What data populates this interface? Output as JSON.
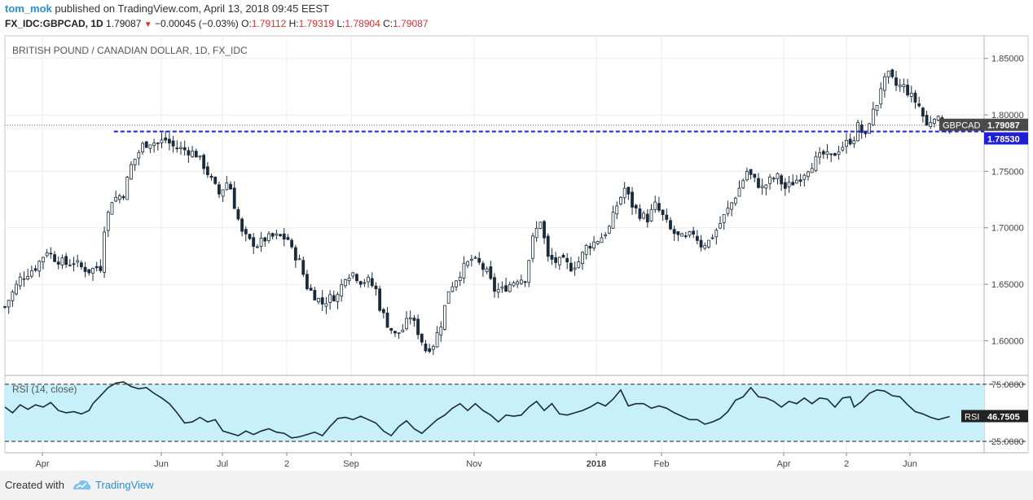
{
  "header": {
    "user": "tom_mok",
    "published": "published on TradingView.com, April 13, 2018 09:45 EEST"
  },
  "quote": {
    "symbol": "FX_IDC:GBPCAD, 1D",
    "last": "1.79087",
    "change": "−0.00045 (−0.03%)",
    "o_label": "O:",
    "o": "1.79112",
    "h_label": "H:",
    "h": "1.79319",
    "l_label": "L:",
    "l": "1.78904",
    "c_label": "C:",
    "c": "1.79087"
  },
  "footer": {
    "created": "Created with",
    "brand": "TradingView"
  },
  "colors": {
    "candle": "#1a2b3c",
    "support": "#1f1fd6",
    "rsi_fill": "#c8f0fa",
    "rsi_line": "#1a2b3c",
    "tag_dark": "#4a4a4a",
    "accent": "#2a8fd6"
  },
  "chart_data": [
    {
      "type": "candlestick",
      "title": "BRITISH POUND / CANADIAN DOLLAR, 1D, FX_IDC",
      "ylim": [
        1.57,
        1.87
      ],
      "yticks": [
        1.6,
        1.65,
        1.7,
        1.75,
        1.8,
        1.85
      ],
      "ytick_labels": [
        "1.60000",
        "1.65000",
        "1.70000",
        "1.75000",
        "1.80000",
        "1.85000"
      ],
      "x_labels": [
        "Apr",
        "Jun",
        "Jul",
        "2",
        "Sep",
        "Nov",
        "2018",
        "Feb",
        "Apr",
        "2",
        "Jun"
      ],
      "close_path": [
        [
          0,
          1.63
        ],
        [
          8,
          1.655
        ],
        [
          16,
          1.665
        ],
        [
          22,
          1.68
        ],
        [
          26,
          1.673
        ],
        [
          32,
          1.668
        ],
        [
          36,
          1.67
        ],
        [
          40,
          1.665
        ],
        [
          44,
          1.662
        ],
        [
          48,
          1.665
        ],
        [
          50,
          1.665
        ],
        [
          52,
          1.7
        ],
        [
          56,
          1.725
        ],
        [
          62,
          1.73
        ],
        [
          66,
          1.755
        ],
        [
          72,
          1.773
        ],
        [
          76,
          1.776
        ],
        [
          80,
          1.775
        ],
        [
          84,
          1.778
        ],
        [
          88,
          1.772
        ],
        [
          92,
          1.77
        ],
        [
          96,
          1.768
        ],
        [
          100,
          1.765
        ],
        [
          104,
          1.755
        ],
        [
          108,
          1.742
        ],
        [
          112,
          1.73
        ],
        [
          116,
          1.74
        ],
        [
          118,
          1.735
        ],
        [
          120,
          1.72
        ],
        [
          124,
          1.695
        ],
        [
          128,
          1.688
        ],
        [
          132,
          1.685
        ],
        [
          136,
          1.69
        ],
        [
          140,
          1.692
        ],
        [
          144,
          1.692
        ],
        [
          148,
          1.69
        ],
        [
          150,
          1.68
        ],
        [
          154,
          1.67
        ],
        [
          158,
          1.648
        ],
        [
          162,
          1.64
        ],
        [
          166,
          1.633
        ],
        [
          170,
          1.638
        ],
        [
          174,
          1.64
        ],
        [
          178,
          1.658
        ],
        [
          182,
          1.66
        ],
        [
          186,
          1.653
        ],
        [
          190,
          1.653
        ],
        [
          194,
          1.645
        ],
        [
          196,
          1.63
        ],
        [
          200,
          1.615
        ],
        [
          204,
          1.605
        ],
        [
          208,
          1.61
        ],
        [
          212,
          1.622
        ],
        [
          214,
          1.615
        ],
        [
          216,
          1.608
        ],
        [
          220,
          1.592
        ],
        [
          224,
          1.597
        ],
        [
          228,
          1.615
        ],
        [
          232,
          1.645
        ],
        [
          236,
          1.655
        ],
        [
          240,
          1.665
        ],
        [
          244,
          1.672
        ],
        [
          248,
          1.668
        ],
        [
          252,
          1.66
        ],
        [
          256,
          1.645
        ],
        [
          260,
          1.645
        ],
        [
          264,
          1.65
        ],
        [
          268,
          1.655
        ],
        [
          272,
          1.655
        ],
        [
          276,
          1.69
        ],
        [
          280,
          1.707
        ],
        [
          284,
          1.673
        ],
        [
          288,
          1.67
        ],
        [
          292,
          1.67
        ],
        [
          296,
          1.665
        ],
        [
          300,
          1.67
        ],
        [
          304,
          1.683
        ],
        [
          308,
          1.687
        ],
        [
          312,
          1.692
        ],
        [
          316,
          1.7
        ],
        [
          320,
          1.72
        ],
        [
          324,
          1.735
        ],
        [
          328,
          1.72
        ],
        [
          332,
          1.712
        ],
        [
          336,
          1.708
        ],
        [
          340,
          1.72
        ],
        [
          344,
          1.71
        ],
        [
          348,
          1.698
        ],
        [
          352,
          1.692
        ],
        [
          356,
          1.69
        ],
        [
          360,
          1.696
        ],
        [
          364,
          1.685
        ],
        [
          368,
          1.688
        ],
        [
          372,
          1.698
        ],
        [
          376,
          1.71
        ],
        [
          380,
          1.722
        ],
        [
          384,
          1.735
        ],
        [
          388,
          1.75
        ],
        [
          392,
          1.742
        ],
        [
          396,
          1.735
        ],
        [
          400,
          1.742
        ],
        [
          404,
          1.745
        ],
        [
          408,
          1.735
        ],
        [
          412,
          1.74
        ],
        [
          416,
          1.745
        ],
        [
          420,
          1.753
        ],
        [
          424,
          1.76
        ],
        [
          428,
          1.765
        ],
        [
          432,
          1.762
        ],
        [
          436,
          1.77
        ],
        [
          440,
          1.775
        ],
        [
          444,
          1.78
        ],
        [
          446,
          1.79
        ],
        [
          450,
          1.78
        ],
        [
          452,
          1.795
        ],
        [
          456,
          1.81
        ],
        [
          458,
          1.825
        ],
        [
          462,
          1.835
        ],
        [
          466,
          1.826
        ],
        [
          470,
          1.825
        ],
        [
          474,
          1.816
        ],
        [
          478,
          1.808
        ],
        [
          482,
          1.79
        ],
        [
          486,
          1.8
        ],
        [
          490,
          1.79
        ],
        [
          494,
          1.791
        ]
      ],
      "series": [
        {
          "name": "GBPCAD",
          "last_value": 1.79087,
          "label": "GBPCAD",
          "value_label": "1.79087"
        },
        {
          "name": "Support",
          "style": "dashed",
          "value": 1.7853,
          "value_label": "1.78530",
          "x_range": [
            57,
            493
          ]
        }
      ]
    },
    {
      "type": "line",
      "title": "RSI (14, close)",
      "ylim": [
        15,
        82
      ],
      "yticks": [
        25,
        75
      ],
      "ytick_labels": [
        "25.0000",
        "75.0000"
      ],
      "band": [
        25,
        75
      ],
      "last_value": 46.7505,
      "label": "RSI",
      "value_label": "46.7505",
      "path": [
        [
          0,
          55
        ],
        [
          4,
          50
        ],
        [
          8,
          57
        ],
        [
          12,
          53
        ],
        [
          16,
          57
        ],
        [
          20,
          55
        ],
        [
          24,
          59
        ],
        [
          28,
          52
        ],
        [
          32,
          50
        ],
        [
          36,
          51
        ],
        [
          40,
          49
        ],
        [
          44,
          52
        ],
        [
          46,
          58
        ],
        [
          50,
          65
        ],
        [
          54,
          72
        ],
        [
          58,
          76
        ],
        [
          62,
          77
        ],
        [
          66,
          73
        ],
        [
          70,
          71
        ],
        [
          74,
          72
        ],
        [
          78,
          67
        ],
        [
          82,
          63
        ],
        [
          86,
          58
        ],
        [
          90,
          50
        ],
        [
          94,
          41
        ],
        [
          98,
          42
        ],
        [
          102,
          46
        ],
        [
          106,
          42
        ],
        [
          110,
          44
        ],
        [
          114,
          34
        ],
        [
          118,
          32
        ],
        [
          122,
          30
        ],
        [
          126,
          34
        ],
        [
          130,
          31
        ],
        [
          134,
          34
        ],
        [
          138,
          36
        ],
        [
          142,
          33
        ],
        [
          146,
          32
        ],
        [
          150,
          28
        ],
        [
          154,
          29
        ],
        [
          158,
          31
        ],
        [
          162,
          33
        ],
        [
          166,
          30
        ],
        [
          170,
          38
        ],
        [
          174,
          45
        ],
        [
          178,
          46
        ],
        [
          182,
          44
        ],
        [
          186,
          47
        ],
        [
          190,
          44
        ],
        [
          194,
          41
        ],
        [
          198,
          34
        ],
        [
          202,
          30
        ],
        [
          206,
          38
        ],
        [
          210,
          43
        ],
        [
          214,
          36
        ],
        [
          218,
          32
        ],
        [
          222,
          38
        ],
        [
          226,
          44
        ],
        [
          230,
          48
        ],
        [
          234,
          54
        ],
        [
          238,
          58
        ],
        [
          242,
          52
        ],
        [
          246,
          58
        ],
        [
          250,
          52
        ],
        [
          254,
          48
        ],
        [
          258,
          42
        ],
        [
          262,
          48
        ],
        [
          266,
          47
        ],
        [
          270,
          48
        ],
        [
          274,
          55
        ],
        [
          278,
          60
        ],
        [
          282,
          52
        ],
        [
          286,
          58
        ],
        [
          290,
          49
        ],
        [
          294,
          48
        ],
        [
          298,
          50
        ],
        [
          302,
          52
        ],
        [
          306,
          55
        ],
        [
          310,
          59
        ],
        [
          314,
          56
        ],
        [
          318,
          62
        ],
        [
          322,
          70
        ],
        [
          326,
          56
        ],
        [
          330,
          58
        ],
        [
          334,
          58
        ],
        [
          338,
          54
        ],
        [
          342,
          56
        ],
        [
          346,
          54
        ],
        [
          350,
          50
        ],
        [
          354,
          47
        ],
        [
          358,
          44
        ],
        [
          362,
          44
        ],
        [
          366,
          40
        ],
        [
          370,
          42
        ],
        [
          374,
          45
        ],
        [
          378,
          51
        ],
        [
          382,
          61
        ],
        [
          386,
          64
        ],
        [
          390,
          72
        ],
        [
          394,
          64
        ],
        [
          398,
          63
        ],
        [
          402,
          60
        ],
        [
          406,
          55
        ],
        [
          410,
          60
        ],
        [
          414,
          58
        ],
        [
          418,
          63
        ],
        [
          422,
          58
        ],
        [
          426,
          63
        ],
        [
          430,
          62
        ],
        [
          434,
          55
        ],
        [
          438,
          63
        ],
        [
          442,
          64
        ],
        [
          444,
          55
        ],
        [
          448,
          60
        ],
        [
          452,
          67
        ],
        [
          456,
          70
        ],
        [
          460,
          69
        ],
        [
          464,
          65
        ],
        [
          468,
          64
        ],
        [
          472,
          57
        ],
        [
          476,
          51
        ],
        [
          480,
          49
        ],
        [
          484,
          46
        ],
        [
          488,
          44
        ],
        [
          494,
          46.75
        ]
      ]
    }
  ]
}
